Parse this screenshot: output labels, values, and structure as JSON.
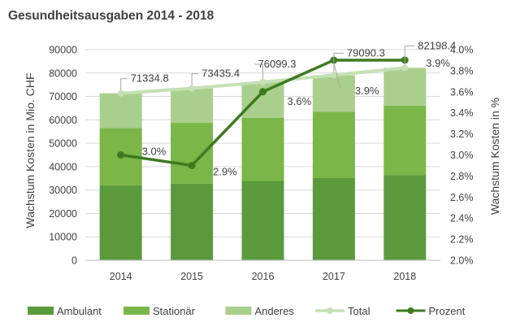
{
  "chart_data": {
    "type": "bar",
    "title": "Gesundheitsausgaben 2014 - 2018",
    "categories": [
      "2014",
      "2015",
      "2016",
      "2017",
      "2018"
    ],
    "series": [
      {
        "name": "Ambulant",
        "kind": "stacked-bar",
        "axis": "left",
        "color": "#5a9a3c",
        "values": [
          32000,
          32700,
          33900,
          35100,
          36300
        ]
      },
      {
        "name": "Stationär",
        "kind": "stacked-bar",
        "axis": "left",
        "color": "#7ab648",
        "values": [
          24500,
          26000,
          27000,
          28300,
          29700
        ]
      },
      {
        "name": "Anderes",
        "kind": "stacked-bar",
        "axis": "left",
        "color": "#a9cf8c",
        "values": [
          14834.8,
          14735.4,
          15199.3,
          15690.3,
          16198.4
        ]
      },
      {
        "name": "Total",
        "kind": "line",
        "axis": "left",
        "color": "#c5e0b4",
        "values": [
          71334.8,
          73435.4,
          76099.3,
          79090.3,
          82198.4
        ],
        "labels": [
          "71334.8",
          "73435.4",
          "76099.3",
          "79090.3",
          "82198.4"
        ]
      },
      {
        "name": "Prozent",
        "kind": "line",
        "axis": "right",
        "color": "#3d7a1f",
        "values": [
          3.0,
          2.9,
          3.6,
          3.9,
          3.9
        ],
        "labels": [
          "3.0%",
          "2.9%",
          "3.6%",
          "3.9%",
          "3.9%"
        ]
      }
    ],
    "ylabel": "Wachstum Kosten in Mio. CHF",
    "ylabel_right": "Wachstum Kosten in %",
    "ylim": [
      0,
      90000
    ],
    "yticks": [
      0,
      10000,
      20000,
      30000,
      40000,
      50000,
      60000,
      70000,
      80000,
      90000
    ],
    "ytick_labels": [
      "0",
      "10000",
      "20000",
      "30000",
      "40000",
      "50000",
      "60000",
      "70000",
      "80000",
      "90000"
    ],
    "ylim_right": [
      2.0,
      4.0
    ],
    "yticks_right": [
      2.0,
      2.2,
      2.4,
      2.6,
      2.8,
      3.0,
      3.2,
      3.4,
      3.6,
      3.8,
      4.0
    ],
    "ytick_labels_right": [
      "2.0%",
      "2.2%",
      "2.4%",
      "2.6%",
      "2.8%",
      "3.0%",
      "3.2%",
      "3.4%",
      "3.6%",
      "3.8%",
      "4.0%"
    ],
    "grid": "horizontal",
    "legend": "bottom"
  }
}
